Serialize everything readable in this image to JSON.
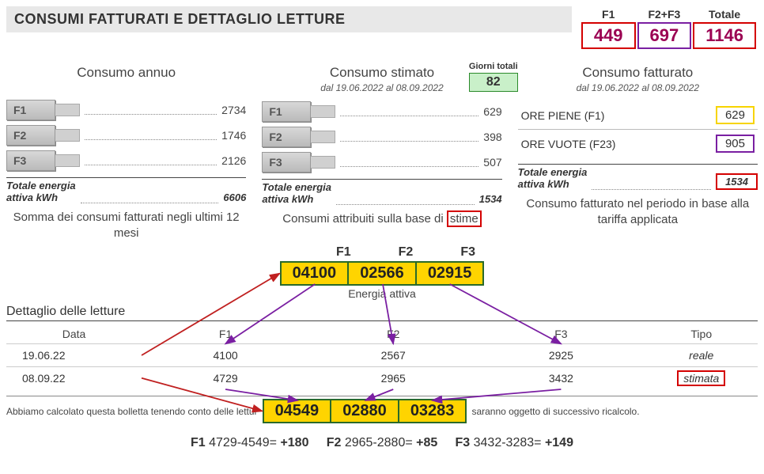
{
  "title": "CONSUMI FATTURATI E DETTAGLIO LETTURE",
  "summary": {
    "headers": {
      "f1": "F1",
      "f23": "F2+F3",
      "tot": "Totale"
    },
    "values": {
      "f1": "449",
      "f23": "697",
      "tot": "1146"
    },
    "colors": {
      "f1_border": "#d40000",
      "f23_border": "#7a1fa2",
      "tot_border": "#d40000",
      "text": "#9b0052"
    }
  },
  "annual": {
    "heading": "Consumo annuo",
    "rows": [
      {
        "label": "F1",
        "value": "2734"
      },
      {
        "label": "F2",
        "value": "1746"
      },
      {
        "label": "F3",
        "value": "2126"
      }
    ],
    "total_label": "Totale energia",
    "total_label2": "attiva kWh",
    "total_value": "6606",
    "explain": "Somma dei consumi fatturati negli ultimi 12 mesi"
  },
  "estimated": {
    "heading": "Consumo stimato",
    "period": "dal 19.06.2022 al 08.09.2022",
    "days_label": "Giorni totali",
    "days_value": "82",
    "rows": [
      {
        "label": "F1",
        "value": "629"
      },
      {
        "label": "F2",
        "value": "398"
      },
      {
        "label": "F3",
        "value": "507"
      }
    ],
    "total_label": "Totale energia",
    "total_label2": "attiva kWh",
    "total_value": "1534",
    "explain_pre": "Consumi attribuiti sulla base di",
    "explain_box": "stime"
  },
  "billed": {
    "heading": "Consumo fatturato",
    "period": "dal 19.06.2022 al 08.09.2022",
    "line1_label": "ORE PIENE (F1)",
    "line1_value": "629",
    "line2_label": "ORE VUOTE (F23)",
    "line2_value": "905",
    "total_label": "Totale energia",
    "total_label2": "attiva kWh",
    "total_value": "1534",
    "explain": "Consumo fatturato nel periodo in base alla tariffa applicata"
  },
  "mid": {
    "f_headers": [
      "F1",
      "F2",
      "F3"
    ],
    "top_cells": [
      "04100",
      "02566",
      "02915"
    ],
    "caption": "Energia attiva",
    "bottom_cells": [
      "04549",
      "02880",
      "03283"
    ]
  },
  "dett_title": "Dettaglio delle letture",
  "readings": {
    "headers": {
      "data": "Data",
      "f1": "F1",
      "f2": "F2",
      "f3": "F3",
      "tipo": "Tipo"
    },
    "rows": [
      {
        "date": "19.06.22",
        "f1": "4100",
        "f2": "2567",
        "f3": "2925",
        "tipo": "reale",
        "tipo_boxed": false
      },
      {
        "date": "08.09.22",
        "f1": "4729",
        "f2": "2965",
        "f3": "3432",
        "tipo": "stimata",
        "tipo_boxed": true
      }
    ]
  },
  "footer": {
    "pre": "Abbiamo calcolato questa bolletta tenendo conto delle lettur",
    "post": "saranno oggetto di successivo ricalcolo."
  },
  "calc": {
    "parts": [
      {
        "b": "F1",
        "t": " 4729-4549= ",
        "r": "+180"
      },
      {
        "b": "F2",
        "t": " 2965-2880= ",
        "r": "+85"
      },
      {
        "b": "F3",
        "t": " 3432-3283= ",
        "r": "+149"
      }
    ]
  },
  "arrows": {
    "red": {
      "color": "#c02020",
      "width": 1.8
    },
    "purple": {
      "color": "#7a1fa2",
      "width": 1.8
    }
  }
}
